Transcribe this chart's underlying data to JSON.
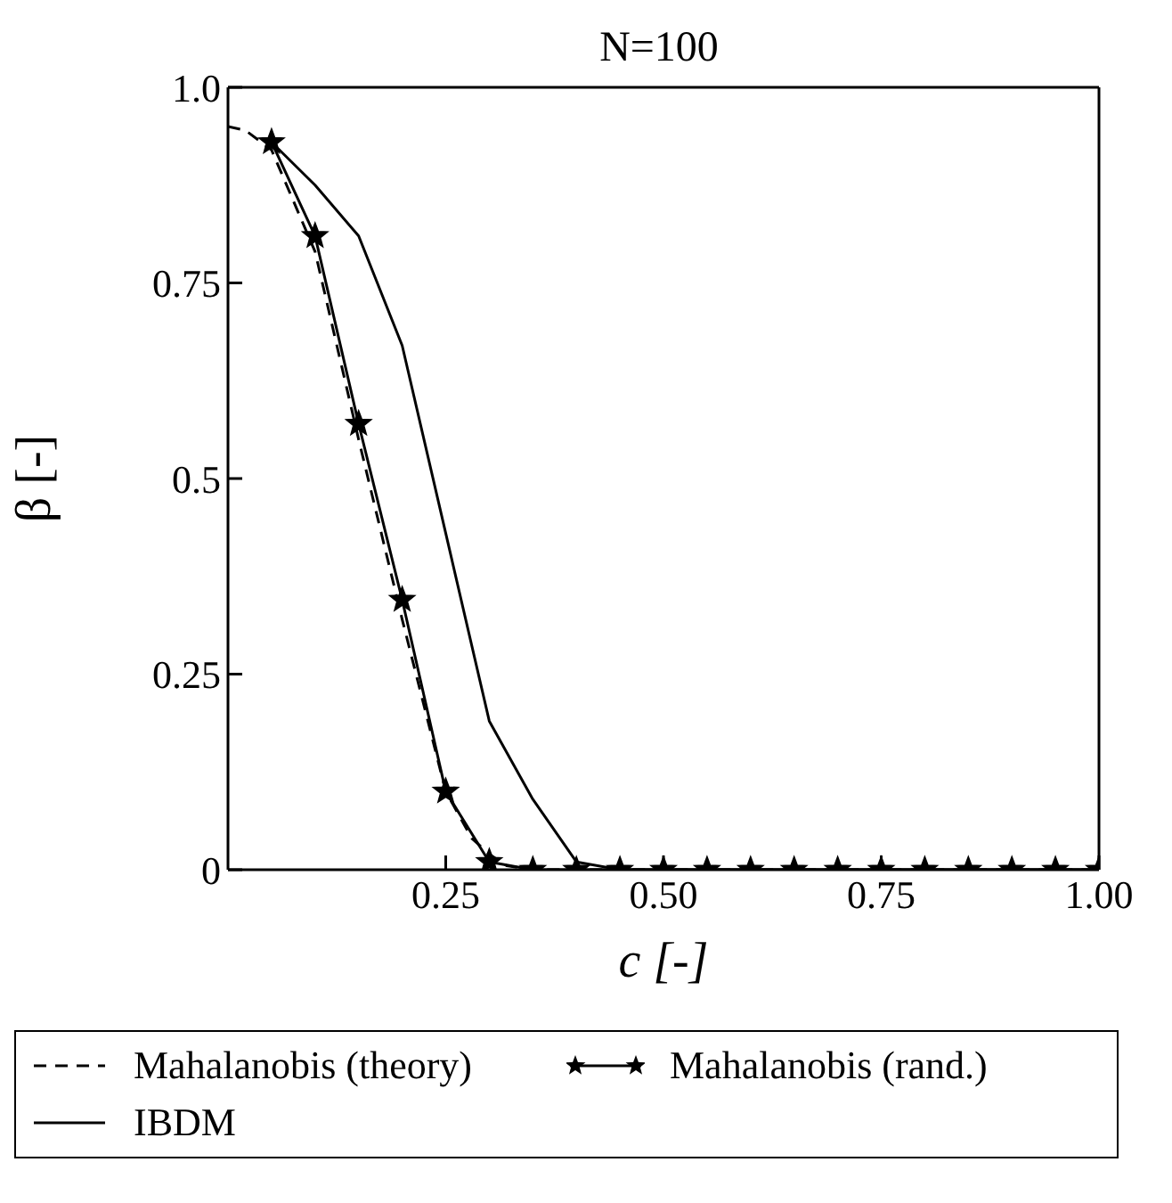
{
  "chart_data": {
    "type": "line",
    "title": "N=100",
    "xlabel": "c [-]",
    "ylabel": "β [-]",
    "xlim": [
      0,
      1
    ],
    "ylim": [
      0,
      1
    ],
    "xticks": [
      {
        "value": 0.25,
        "label": "0.25"
      },
      {
        "value": 0.5,
        "label": "0.50"
      },
      {
        "value": 0.75,
        "label": "0.75"
      },
      {
        "value": 1,
        "label": "1.00"
      }
    ],
    "yticks": [
      0,
      0.25,
      0.5,
      0.75,
      {
        "value": 1,
        "label": "1.0"
      }
    ],
    "legend": "bottom",
    "series": [
      {
        "name": "Mahalanobis (theory)",
        "color": "#000000",
        "line_style": "dashed",
        "marker": "none",
        "x": [
          0,
          0.02,
          0.05,
          0.1,
          0.15,
          0.2,
          0.25,
          0.28,
          0.3,
          0.32,
          0.35,
          0.5,
          0.75,
          1
        ],
        "values": [
          0.95,
          0.945,
          0.92,
          0.79,
          0.55,
          0.32,
          0.1,
          0.04,
          0.02,
          0.005,
          0,
          0,
          0,
          0
        ]
      },
      {
        "name": "Mahalanobis (rand.)",
        "color": "#000000",
        "line_style": "solid",
        "marker": "star",
        "x": [
          0.05,
          0.1,
          0.15,
          0.2,
          0.25,
          0.3,
          0.35,
          0.4,
          0.45,
          0.5,
          0.55,
          0.6,
          0.65,
          0.7,
          0.75,
          0.8,
          0.85,
          0.9,
          0.95,
          1
        ],
        "values": [
          0.93,
          0.81,
          0.57,
          0.345,
          0.1,
          0.01,
          0,
          0,
          0,
          0,
          0,
          0,
          0,
          0,
          0,
          0,
          0,
          0,
          0,
          0
        ]
      },
      {
        "name": "IBDM",
        "color": "#000000",
        "line_style": "solid",
        "marker": "none",
        "x": [
          0.05,
          0.1,
          0.15,
          0.2,
          0.25,
          0.3,
          0.35,
          0.4,
          0.45,
          0.5,
          0.55,
          0.6,
          0.65,
          0.7,
          0.75,
          0.8,
          0.85,
          0.9,
          0.95,
          1
        ],
        "values": [
          0.93,
          0.875,
          0.81,
          0.67,
          0.43,
          0.19,
          0.09,
          0.01,
          0,
          0,
          0,
          0,
          0,
          0,
          0,
          0,
          0,
          0,
          0,
          0
        ]
      }
    ]
  }
}
